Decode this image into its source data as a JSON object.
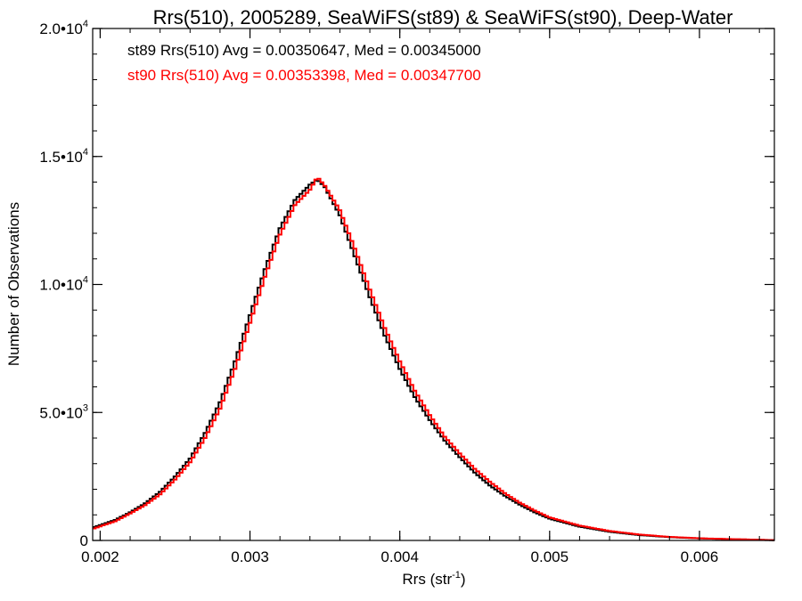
{
  "chart_data": {
    "type": "line",
    "title": "Rrs(510), 2005289, SeaWiFS(st89) & SeaWiFS(st90), Deep-Water",
    "xlabel": "Rrs (str",
    "xlabel_sup": "-1",
    "xlabel_end": ")",
    "ylabel": "Number of Observations",
    "xlim": [
      0.00195,
      0.0065
    ],
    "ylim": [
      0,
      20000
    ],
    "x_ticks": [
      {
        "value": 0.002,
        "label": "0.002"
      },
      {
        "value": 0.003,
        "label": "0.003"
      },
      {
        "value": 0.004,
        "label": "0.004"
      },
      {
        "value": 0.005,
        "label": "0.005"
      },
      {
        "value": 0.006,
        "label": "0.006"
      }
    ],
    "y_ticks": [
      {
        "value": 0,
        "base": "0",
        "sup": ""
      },
      {
        "value": 5000,
        "base": "5.0•10",
        "sup": "3"
      },
      {
        "value": 10000,
        "base": "1.0•10",
        "sup": "4"
      },
      {
        "value": 15000,
        "base": "1.5•10",
        "sup": "4"
      },
      {
        "value": 20000,
        "base": "2.0•10",
        "sup": "4"
      }
    ],
    "x_minor_step": 0.0002,
    "y_minor_step": 1000,
    "grid": false,
    "legend_position": "top-left",
    "annotations": [
      {
        "text": "st89 Rrs(510) Avg = 0.00350647, Med = 0.00345000",
        "color": "#000000"
      },
      {
        "text": "st90 Rrs(510) Avg = 0.00353398, Med = 0.00347700",
        "color": "#ff0000"
      }
    ],
    "series": [
      {
        "color": "#000000",
        "style": "step",
        "x": [
          0.00195,
          0.0021,
          0.0022,
          0.0023,
          0.0024,
          0.0025,
          0.0026,
          0.0027,
          0.0028,
          0.0029,
          0.003,
          0.0031,
          0.0032,
          0.0033,
          0.0034,
          0.00345,
          0.0035,
          0.0036,
          0.0037,
          0.0038,
          0.0039,
          0.004,
          0.0041,
          0.0042,
          0.0043,
          0.0044,
          0.0045,
          0.0046,
          0.0047,
          0.0048,
          0.0049,
          0.005,
          0.0052,
          0.0054,
          0.0056,
          0.0058,
          0.006,
          0.0062,
          0.0064,
          0.0065
        ],
        "y": [
          500,
          800,
          1100,
          1450,
          1900,
          2500,
          3200,
          4200,
          5400,
          7000,
          8800,
          10600,
          12200,
          13300,
          13900,
          14100,
          13800,
          12700,
          11100,
          9500,
          8000,
          6700,
          5600,
          4700,
          3900,
          3250,
          2650,
          2150,
          1750,
          1400,
          1100,
          850,
          540,
          340,
          210,
          130,
          80,
          50,
          25,
          10
        ]
      },
      {
        "color": "#ff0000",
        "style": "step",
        "x": [
          0.00195,
          0.0021,
          0.0022,
          0.0023,
          0.0024,
          0.0025,
          0.0026,
          0.0027,
          0.0028,
          0.0029,
          0.003,
          0.0031,
          0.0032,
          0.0033,
          0.0034,
          0.00345,
          0.0035,
          0.0036,
          0.0037,
          0.0038,
          0.0039,
          0.004,
          0.0041,
          0.0042,
          0.0043,
          0.0044,
          0.0045,
          0.0046,
          0.0047,
          0.0048,
          0.0049,
          0.005,
          0.0052,
          0.0054,
          0.0056,
          0.0058,
          0.006,
          0.0062,
          0.0064,
          0.0065
        ],
        "y": [
          450,
          750,
          1050,
          1380,
          1800,
          2380,
          3050,
          4000,
          5150,
          6700,
          8500,
          10300,
          11950,
          13100,
          13700,
          14200,
          13850,
          12900,
          11400,
          9800,
          8300,
          7000,
          5850,
          4900,
          4050,
          3400,
          2800,
          2300,
          1850,
          1480,
          1170,
          900,
          580,
          370,
          230,
          140,
          85,
          55,
          28,
          12
        ]
      }
    ]
  }
}
